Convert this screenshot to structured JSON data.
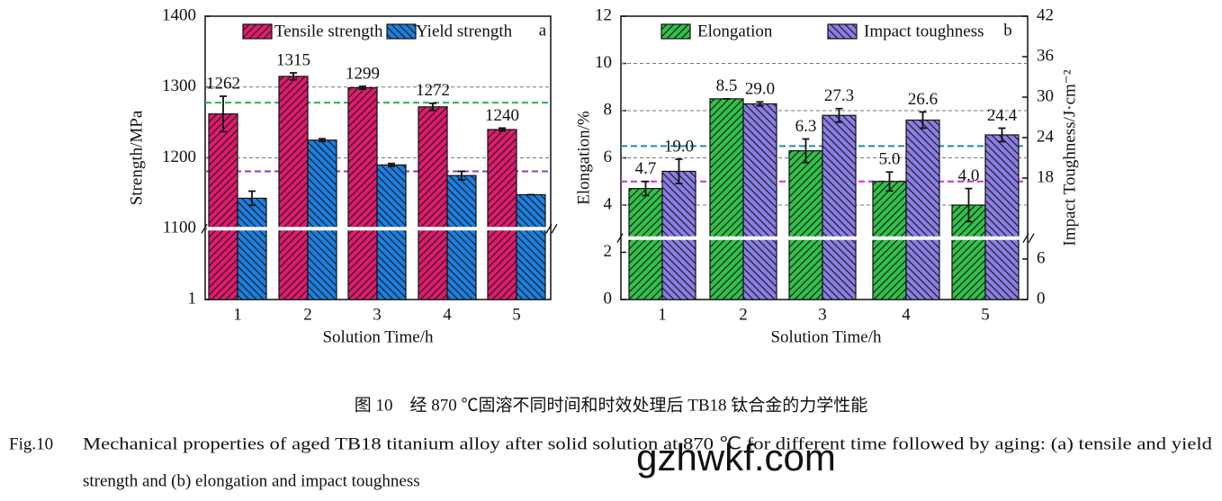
{
  "chart_data": [
    {
      "type": "bar",
      "panel_label": "a",
      "y_label": "Strength/MPa",
      "x_label": "Solution Time/h",
      "categories": [
        "1",
        "2",
        "3",
        "4",
        "5"
      ],
      "ylim": [
        1000,
        1400
      ],
      "yticks": [
        {
          "value": 1000,
          "label": "1"
        },
        1100,
        1200,
        1300,
        1400
      ],
      "axis_break": 1100,
      "series": [
        {
          "name": "Tensile strength",
          "color": "#e3196e",
          "values": [
            1262,
            1315,
            1299,
            1272,
            1240
          ],
          "errors": [
            25,
            5,
            2,
            5,
            2
          ],
          "show_labels": true
        },
        {
          "name": "Yield strength",
          "color": "#1a7fe3",
          "values": [
            1143,
            1225,
            1190,
            1175,
            1148
          ],
          "errors": [
            10,
            2,
            2,
            6,
            0
          ]
        }
      ],
      "reference_lines": [
        {
          "value": 1278,
          "color": "#2db34a"
        },
        {
          "value": 1181,
          "color": "#8e3fb3"
        }
      ]
    },
    {
      "type": "bar",
      "panel_label": "b",
      "y_label": "Elongation/%",
      "y2_label": "Impact Toughness/J·cm⁻²",
      "x_label": "Solution Time/h",
      "categories": [
        "1",
        "2",
        "3",
        "4",
        "5"
      ],
      "ylim": [
        0,
        12
      ],
      "yticks": [
        0,
        2,
        4,
        6,
        8,
        10,
        12
      ],
      "y2lim": [
        0,
        42
      ],
      "y2ticks": [
        0,
        6,
        18,
        24,
        30,
        36,
        42
      ],
      "axis_break": 2.6,
      "series": [
        {
          "name": "Elongation",
          "color": "#2fc24a",
          "values": [
            4.7,
            8.5,
            6.3,
            5.0,
            4.0
          ],
          "value_labels": [
            "4.7",
            "8.5",
            "6.3",
            "5.0",
            "4.0"
          ],
          "errors": [
            0.3,
            0,
            0.5,
            0.4,
            0.7
          ]
        },
        {
          "name": "Impact toughness",
          "color": "#8a7fe8",
          "axis": "y2",
          "values": [
            19.0,
            29.0,
            27.3,
            26.6,
            24.4
          ],
          "value_labels": [
            "19.0",
            "29.0",
            "27.3",
            "26.6",
            "24.4"
          ],
          "errors": [
            1.8,
            0.3,
            1.0,
            1.2,
            1.0
          ]
        }
      ],
      "reference_lines": [
        {
          "value": 6.5,
          "color": "#1f8aa8"
        },
        {
          "value": 5.0,
          "color": "#c930d9"
        }
      ]
    }
  ],
  "caption": {
    "chinese": "图 10　经 870 ℃固溶不同时间和时效处理后 TB18 钛合金的力学性能",
    "fig_label": "Fig.10",
    "english_line1": "Mechanical properties of aged TB18 titanium alloy after solid solution at 870 ℃ for different time followed by aging: (a) tensile and yield",
    "english_line2": "strength and (b) elongation and impact toughness"
  },
  "watermark": "gzhwkf.com"
}
